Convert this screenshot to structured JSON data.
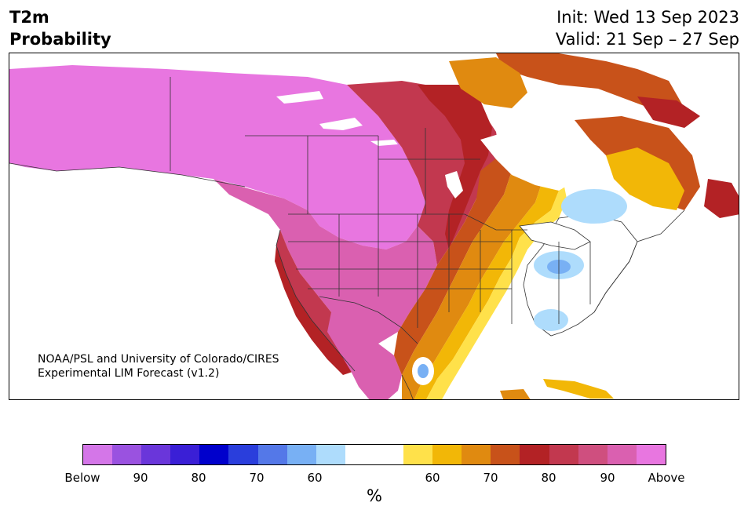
{
  "header": {
    "title_line1": "T2m",
    "title_line2": "Probability",
    "init": "Init: Wed 13 Sep 2023",
    "valid": "Valid: 21 Sep – 27 Sep"
  },
  "credit": {
    "line1": "NOAA/PSL and University of Colorado/CIRES",
    "line2": "Experimental LIM Forecast (v1.2)"
  },
  "colorbar": {
    "unit": "%",
    "colors": [
      "#d476e8",
      "#9a52e0",
      "#6a36da",
      "#3a1fd6",
      "#0000cc",
      "#2a3edc",
      "#5478e8",
      "#78b0f4",
      "#aedcfc",
      "#ffffff",
      "#ffffff",
      "#ffe14a",
      "#f2b707",
      "#e08a10",
      "#c8521a",
      "#b32225",
      "#c2384f",
      "#cf4f7f",
      "#da60b0",
      "#e876e0"
    ],
    "ticks": [
      "Below",
      "90",
      "80",
      "70",
      "60",
      "60",
      "70",
      "80",
      "90",
      "Above"
    ]
  },
  "legend_colors": {
    "above_extreme": "#e876e0",
    "above_90": "#da60b0",
    "above_80": "#b32225",
    "above_70": "#c8521a",
    "above_60": "#f2b707",
    "neutral": "#ffffff",
    "below_60": "#aedcfc",
    "below_70": "#78b0f4"
  }
}
